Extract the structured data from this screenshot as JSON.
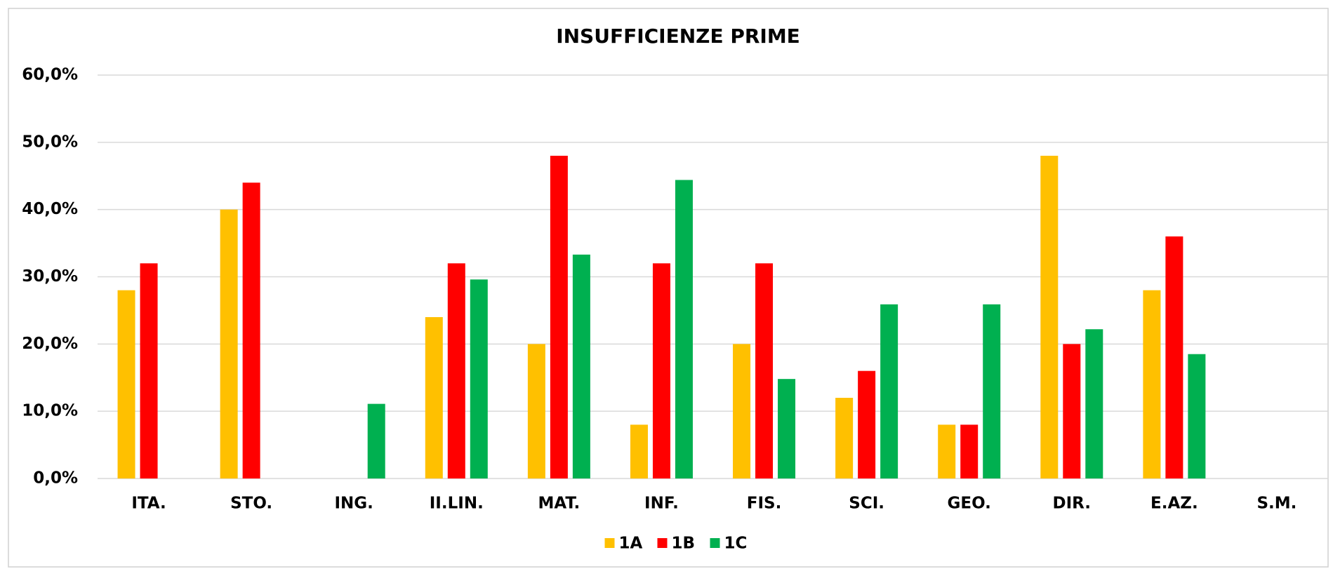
{
  "chart_data": {
    "type": "bar",
    "title": "INSUFFICIENZE PRIME",
    "categories": [
      "ITA.",
      "STO.",
      "ING.",
      "II.LIN.",
      "MAT.",
      "INF.",
      "FIS.",
      "SCI.",
      "GEO.",
      "DIR.",
      "E.AZ.",
      "S.M."
    ],
    "series": [
      {
        "name": "1A",
        "color": "#FFC000",
        "values": [
          28,
          40,
          null,
          24,
          20,
          8,
          20,
          12,
          8,
          48,
          28,
          null
        ]
      },
      {
        "name": "1B",
        "color": "#FF0000",
        "values": [
          32,
          44,
          null,
          32,
          48,
          32,
          32,
          16,
          8,
          20,
          36,
          null
        ]
      },
      {
        "name": "1C",
        "color": "#00B050",
        "values": [
          null,
          null,
          11.1,
          29.6,
          33.3,
          44.4,
          14.8,
          25.9,
          25.9,
          22.2,
          18.5,
          null
        ]
      }
    ],
    "ylim": [
      0,
      60
    ],
    "yticks": [
      {
        "value": 0,
        "label": "0,0%"
      },
      {
        "value": 10,
        "label": "10,0%"
      },
      {
        "value": 20,
        "label": "20,0%"
      },
      {
        "value": 30,
        "label": "30,0%"
      },
      {
        "value": 40,
        "label": "40,0%"
      },
      {
        "value": 50,
        "label": "50,0%"
      },
      {
        "value": 60,
        "label": "60,0%"
      }
    ],
    "grid": true,
    "legend": "bottom"
  }
}
